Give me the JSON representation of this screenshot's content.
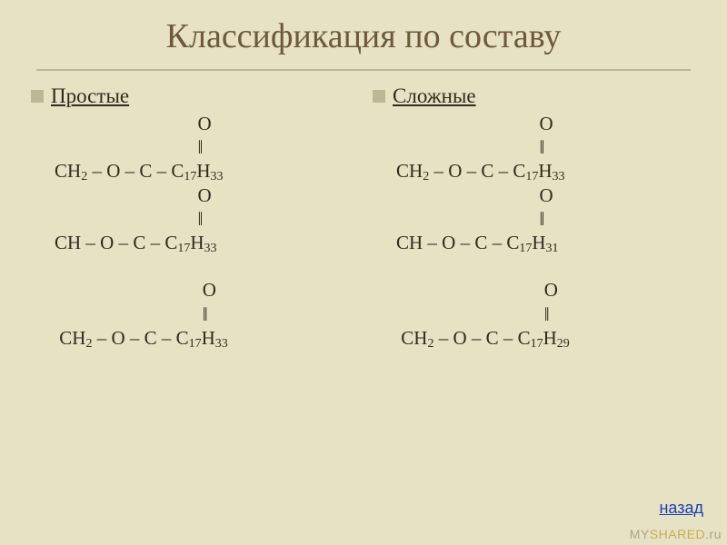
{
  "slide": {
    "background_color": "#e6e2c3",
    "title": "Классификация по составу",
    "title_color": "#6e5a3a",
    "title_fontsize": 38,
    "rule_color": "#bdb893",
    "bullet_color": "#bdb893",
    "text_color": "#312b1e",
    "body_fontsize": 21
  },
  "columns": [
    {
      "heading": "Простые",
      "lines": [
        {
          "indent": "                              ",
          "parts": [
            {
              "t": "O"
            }
          ]
        },
        {
          "indent": "                              ",
          "parts": [
            {
              "t": "ǁ"
            }
          ]
        },
        {
          "indent": "",
          "parts": [
            {
              "t": "CH"
            },
            {
              "t": "2",
              "sub": true
            },
            {
              "t": " – O – C – C"
            },
            {
              "t": "17",
              "sub": true
            },
            {
              "t": "H"
            },
            {
              "t": "33",
              "sub": true
            }
          ]
        },
        {
          "indent": "                              ",
          "parts": [
            {
              "t": "O"
            }
          ]
        },
        {
          "indent": "                              ",
          "parts": [
            {
              "t": "ǁ"
            }
          ]
        },
        {
          "indent": "",
          "parts": [
            {
              "t": "CH – O – C – C"
            },
            {
              "t": "17",
              "sub": true
            },
            {
              "t": "H"
            },
            {
              "t": "33",
              "sub": true
            }
          ]
        },
        {
          "indent": "",
          "parts": []
        },
        {
          "indent": "                               ",
          "parts": [
            {
              "t": "O"
            }
          ]
        },
        {
          "indent": "                               ",
          "parts": [
            {
              "t": "ǁ"
            }
          ]
        },
        {
          "indent": " ",
          "parts": [
            {
              "t": "CH"
            },
            {
              "t": "2",
              "sub": true
            },
            {
              "t": " – O – C – C"
            },
            {
              "t": "17",
              "sub": true
            },
            {
              "t": "H"
            },
            {
              "t": "33",
              "sub": true
            }
          ]
        }
      ]
    },
    {
      "heading": "Сложные",
      "lines": [
        {
          "indent": "                              ",
          "parts": [
            {
              "t": "O"
            }
          ]
        },
        {
          "indent": "                              ",
          "parts": [
            {
              "t": "ǁ"
            }
          ]
        },
        {
          "indent": "",
          "parts": [
            {
              "t": "CH"
            },
            {
              "t": "2",
              "sub": true
            },
            {
              "t": " – O – C – C"
            },
            {
              "t": "17",
              "sub": true
            },
            {
              "t": "H"
            },
            {
              "t": "33",
              "sub": true
            }
          ]
        },
        {
          "indent": "                              ",
          "parts": [
            {
              "t": "O"
            }
          ]
        },
        {
          "indent": "                              ",
          "parts": [
            {
              "t": "ǁ"
            }
          ]
        },
        {
          "indent": "",
          "parts": [
            {
              "t": "CH – O – C – C"
            },
            {
              "t": "17",
              "sub": true
            },
            {
              "t": "H"
            },
            {
              "t": "31",
              "sub": true
            }
          ]
        },
        {
          "indent": "",
          "parts": []
        },
        {
          "indent": "                               ",
          "parts": [
            {
              "t": "O"
            }
          ]
        },
        {
          "indent": "                               ",
          "parts": [
            {
              "t": "ǁ"
            }
          ]
        },
        {
          "indent": " ",
          "parts": [
            {
              "t": "CH"
            },
            {
              "t": "2",
              "sub": true
            },
            {
              "t": " – O – C – C"
            },
            {
              "t": "17",
              "sub": true
            },
            {
              "t": "H"
            },
            {
              "t": "29",
              "sub": true
            }
          ]
        }
      ]
    }
  ],
  "back_link": {
    "label": "назад",
    "color": "#1a3fb5"
  },
  "watermark": {
    "prefix": "MY",
    "accent": "SHARED",
    "suffix": ".ru"
  }
}
